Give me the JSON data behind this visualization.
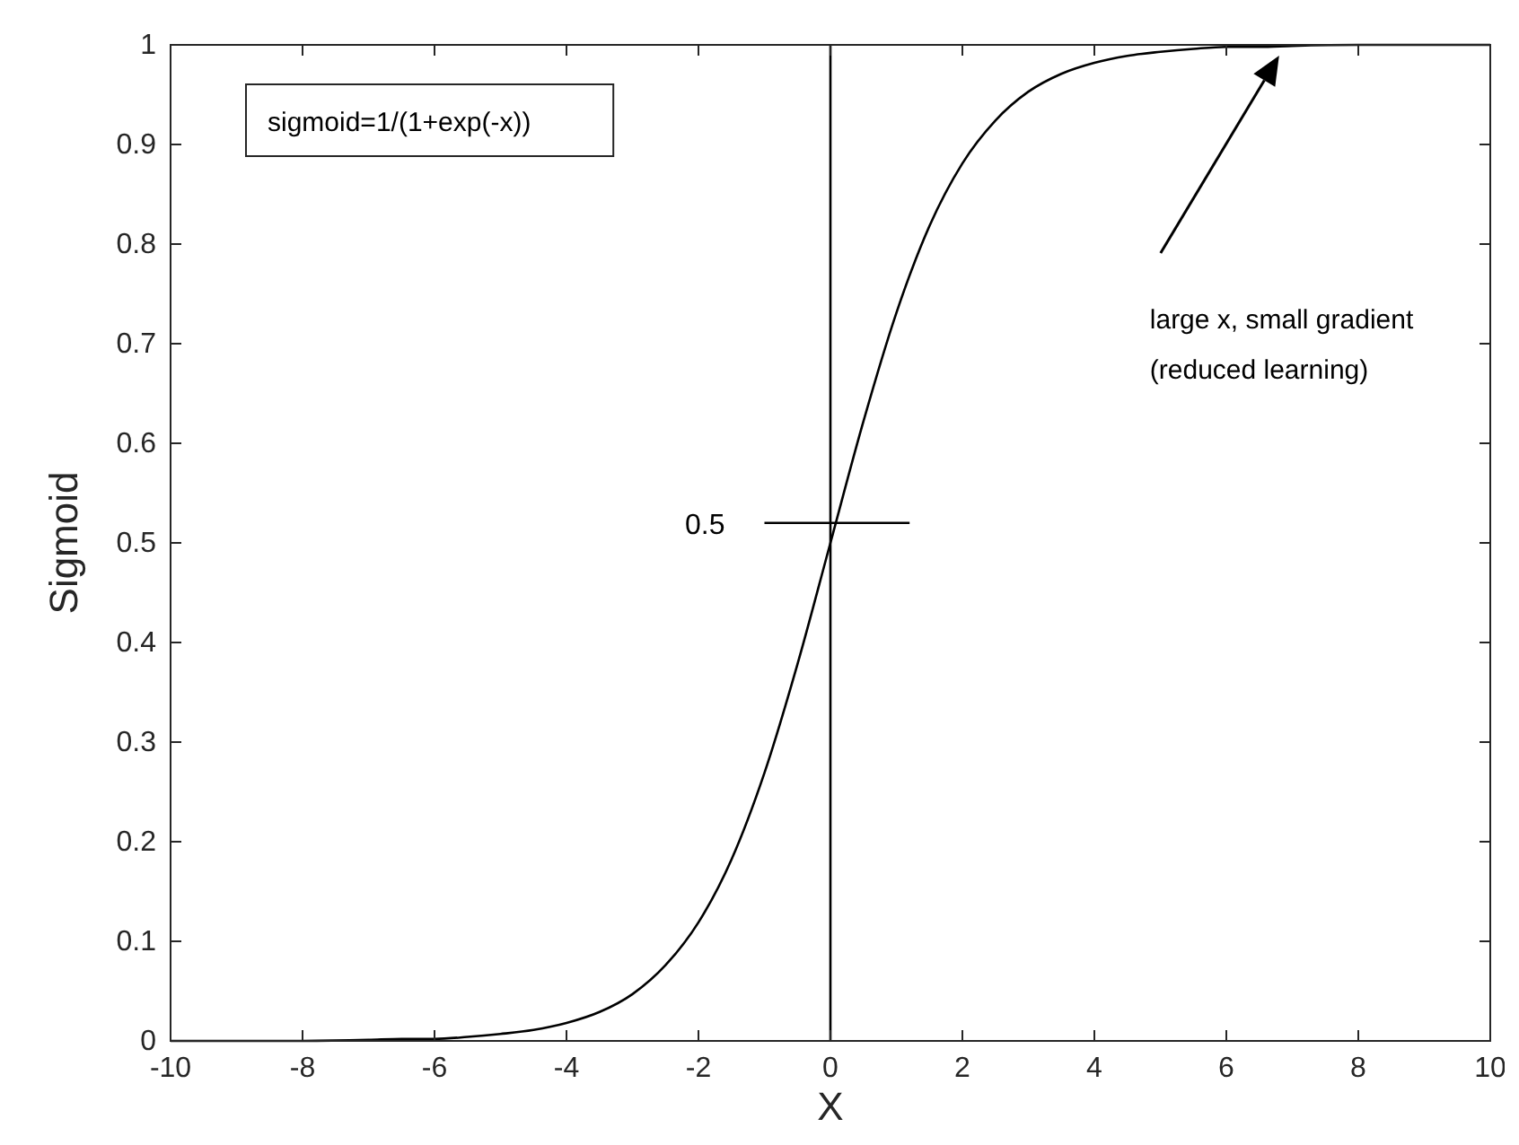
{
  "chart_data": {
    "type": "line",
    "xlabel": "X",
    "ylabel": "Sigmoid",
    "xlim": [
      -10,
      10
    ],
    "xticks": [
      -10,
      -8,
      -6,
      -4,
      -2,
      0,
      2,
      4,
      6,
      8,
      10
    ],
    "ylim": [
      0,
      1
    ],
    "yticks": [
      0,
      0.1,
      0.2,
      0.3,
      0.4,
      0.5,
      0.6,
      0.7,
      0.8,
      0.9,
      1
    ],
    "grid": false,
    "line_style": "solid",
    "series": [
      {
        "color": "#000000",
        "x": [
          -10,
          -9,
          -8,
          -7,
          -6.5,
          -6,
          -5.5,
          -5,
          -4.5,
          -4,
          -3.5,
          -3,
          -2.5,
          -2,
          -1.5,
          -1,
          -0.5,
          0,
          0.5,
          1,
          1.5,
          2,
          2.5,
          3,
          3.5,
          4,
          4.5,
          5,
          5.5,
          6,
          6.5,
          7,
          8,
          9,
          10
        ],
        "values": [
          0,
          0,
          0,
          0.001,
          0.002,
          0.002,
          0.004,
          0.007,
          0.011,
          0.018,
          0.029,
          0.047,
          0.076,
          0.119,
          0.182,
          0.269,
          0.378,
          0.5,
          0.622,
          0.731,
          0.818,
          0.881,
          0.924,
          0.953,
          0.971,
          0.982,
          0.989,
          0.993,
          0.996,
          0.998,
          0.998,
          0.999,
          1,
          1,
          1
        ]
      },
      {
        "color": "#000000",
        "x": [
          -1,
          1.2
        ],
        "values": [
          0.52,
          0.52
        ]
      }
    ],
    "ref_lines": [
      {
        "axis": "x",
        "value": 0,
        "color": "#000000"
      }
    ],
    "annotations": [
      "sigmoid=1/(1+exp(-x))",
      {
        "text": "0.5",
        "x": -1,
        "y": 0.52
      },
      "large x, small gradient\n(reduced learning)"
    ]
  }
}
